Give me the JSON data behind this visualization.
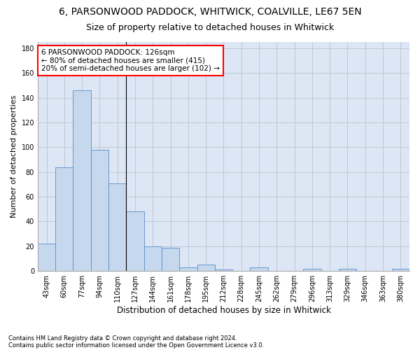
{
  "title1": "6, PARSONWOOD PADDOCK, WHITWICK, COALVILLE, LE67 5EN",
  "title2": "Size of property relative to detached houses in Whitwick",
  "xlabel": "Distribution of detached houses by size in Whitwick",
  "ylabel": "Number of detached properties",
  "footnote1": "Contains HM Land Registry data © Crown copyright and database right 2024.",
  "footnote2": "Contains public sector information licensed under the Open Government Licence v3.0.",
  "bar_labels": [
    "43sqm",
    "60sqm",
    "77sqm",
    "94sqm",
    "110sqm",
    "127sqm",
    "144sqm",
    "161sqm",
    "178sqm",
    "195sqm",
    "212sqm",
    "228sqm",
    "245sqm",
    "262sqm",
    "279sqm",
    "296sqm",
    "313sqm",
    "329sqm",
    "346sqm",
    "363sqm",
    "380sqm"
  ],
  "bar_values": [
    22,
    84,
    146,
    98,
    71,
    48,
    20,
    19,
    3,
    5,
    1,
    0,
    3,
    0,
    0,
    2,
    0,
    2,
    0,
    0,
    2
  ],
  "bar_color": "#c5d8ed",
  "bar_edge_color": "#5b8dc8",
  "ylim": [
    0,
    185
  ],
  "yticks": [
    0,
    20,
    40,
    60,
    80,
    100,
    120,
    140,
    160,
    180
  ],
  "bg_color": "#ffffff",
  "plot_bg_color": "#dce6f5",
  "grid_color": "#b0bec5",
  "property_label": "6 PARSONWOOD PADDOCK: 126sqm",
  "annotation_line1": "← 80% of detached houses are smaller (415)",
  "annotation_line2": "20% of semi-detached houses are larger (102) →",
  "vline_index": 4.5,
  "title1_fontsize": 10,
  "title2_fontsize": 9,
  "xlabel_fontsize": 8.5,
  "ylabel_fontsize": 8,
  "tick_fontsize": 7,
  "annotation_fontsize": 7.5,
  "footnote_fontsize": 6
}
